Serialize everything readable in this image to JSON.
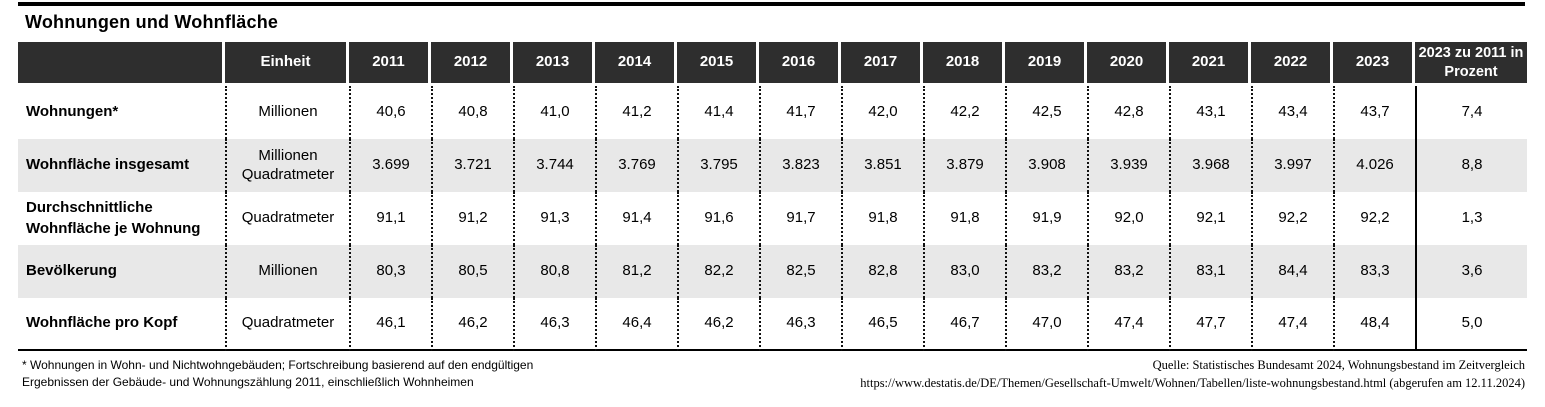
{
  "page": {
    "title": "Wohnungen und Wohnfläche"
  },
  "chart_data": {
    "type": "table",
    "title": "Wohnungen und Wohnfläche",
    "unit_column_header": "Einheit",
    "columns": [
      "",
      "Einheit",
      "2011",
      "2012",
      "2013",
      "2014",
      "2015",
      "2016",
      "2017",
      "2018",
      "2019",
      "2020",
      "2021",
      "2022",
      "2023",
      "2023 zu 2011 in Prozent"
    ],
    "rows": [
      {
        "label": "Wohnungen*",
        "unit": "Millionen",
        "values": [
          "40,6",
          "40,8",
          "41,0",
          "41,2",
          "41,4",
          "41,7",
          "42,0",
          "42,2",
          "42,5",
          "42,8",
          "43,1",
          "43,4",
          "43,7"
        ],
        "change": "7,4"
      },
      {
        "label": "Wohnfläche insgesamt",
        "unit": "Millionen Quadratmeter",
        "values": [
          "3.699",
          "3.721",
          "3.744",
          "3.769",
          "3.795",
          "3.823",
          "3.851",
          "3.879",
          "3.908",
          "3.939",
          "3.968",
          "3.997",
          "4.026"
        ],
        "change": "8,8"
      },
      {
        "label": "Durchschnittliche Wohnfläche je Wohnung",
        "unit": "Quadratmeter",
        "values": [
          "91,1",
          "91,2",
          "91,3",
          "91,4",
          "91,6",
          "91,7",
          "91,8",
          "91,8",
          "91,9",
          "92,0",
          "92,1",
          "92,2",
          "92,2"
        ],
        "change": "1,3"
      },
      {
        "label": "Bevölkerung",
        "unit": "Millionen",
        "values": [
          "80,3",
          "80,5",
          "80,8",
          "81,2",
          "82,2",
          "82,5",
          "82,8",
          "83,0",
          "83,2",
          "83,2",
          "83,1",
          "84,4",
          "83,3"
        ],
        "change": "3,6"
      },
      {
        "label": "Wohnfläche pro Kopf",
        "unit": "Quadratmeter",
        "values": [
          "46,1",
          "46,2",
          "46,3",
          "46,4",
          "46,2",
          "46,3",
          "46,5",
          "46,7",
          "47,0",
          "47,4",
          "47,7",
          "47,4",
          "48,4"
        ],
        "change": "5,0"
      }
    ]
  },
  "footnotes": {
    "left_line1": "* Wohnungen in Wohn- und Nichtwohngebäuden; Fortschreibung basierend auf den endgültigen",
    "left_line2": "Ergebnissen der Gebäude- und Wohnungszählung 2011, einschließlich Wohnheimen",
    "source_line1": "Quelle: Statistisches Bundesamt 2024, Wohnungsbestand im Zeitvergleich",
    "source_line2": "https://www.destatis.de/DE/Themen/Gesellschaft-Umwelt/Wohnen/Tabellen/liste-wohnungsbestand.html (abgerufen am 12.11.2024)"
  },
  "colors": {
    "header_bg": "#2e2e2e",
    "header_text": "#ffffff",
    "row_alt_bg": "#e8e8e8",
    "rule_color": "#000000"
  }
}
